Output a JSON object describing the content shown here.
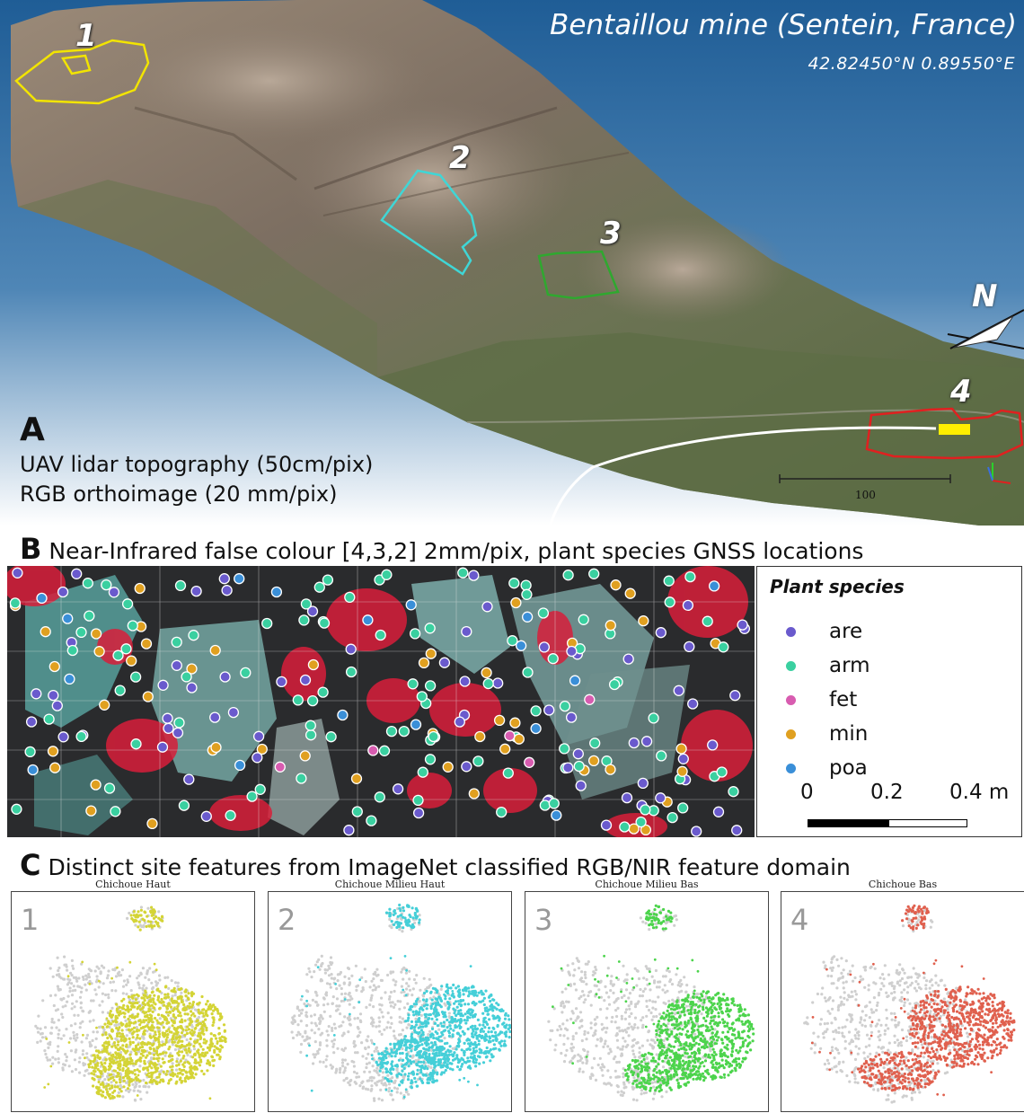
{
  "panel_a": {
    "title": "Bentaillou mine (Sentein, France)",
    "coordinates": "42.82450°N  0.89550°E",
    "letter": "A",
    "line1": "UAV lidar topography (50cm/pix)",
    "line2": "RGB orthoimage (20 mm/pix)",
    "north_label": "N",
    "scale_label": "100",
    "sites": [
      {
        "number": "1",
        "color": "#f2e400"
      },
      {
        "number": "2",
        "color": "#3fd6d6"
      },
      {
        "number": "3",
        "color": "#2fa82f"
      },
      {
        "number": "4",
        "color": "#e02020"
      }
    ]
  },
  "panel_b": {
    "letter": "B",
    "heading": "Near-Infrared false colour [4,3,2] 2mm/pix, plant species GNSS locations",
    "legend_title": "Plant species",
    "legend": [
      {
        "label": "are",
        "color": "#6a5acd"
      },
      {
        "label": "arm",
        "color": "#3ad0a0"
      },
      {
        "label": "fet",
        "color": "#d85cb0"
      },
      {
        "label": "min",
        "color": "#e0a020"
      },
      {
        "label": "poa",
        "color": "#3a8fd8"
      }
    ],
    "scale_ticks": [
      "0",
      "0.2",
      "0.4 m"
    ]
  },
  "panel_c": {
    "letter": "C",
    "heading": "Distinct site features from ImageNet classified RGB/NIR feature domain",
    "panels": [
      {
        "number": "1",
        "subtitle": "Chichoue Haut",
        "color": "#d4d436"
      },
      {
        "number": "2",
        "subtitle": "Chichoue Milieu Haut",
        "color": "#45cfd8"
      },
      {
        "number": "3",
        "subtitle": "Chichoue Milieu Bas",
        "color": "#4cd44c"
      },
      {
        "number": "4",
        "subtitle": "Chichoue Bas",
        "color": "#e0604e"
      }
    ]
  }
}
